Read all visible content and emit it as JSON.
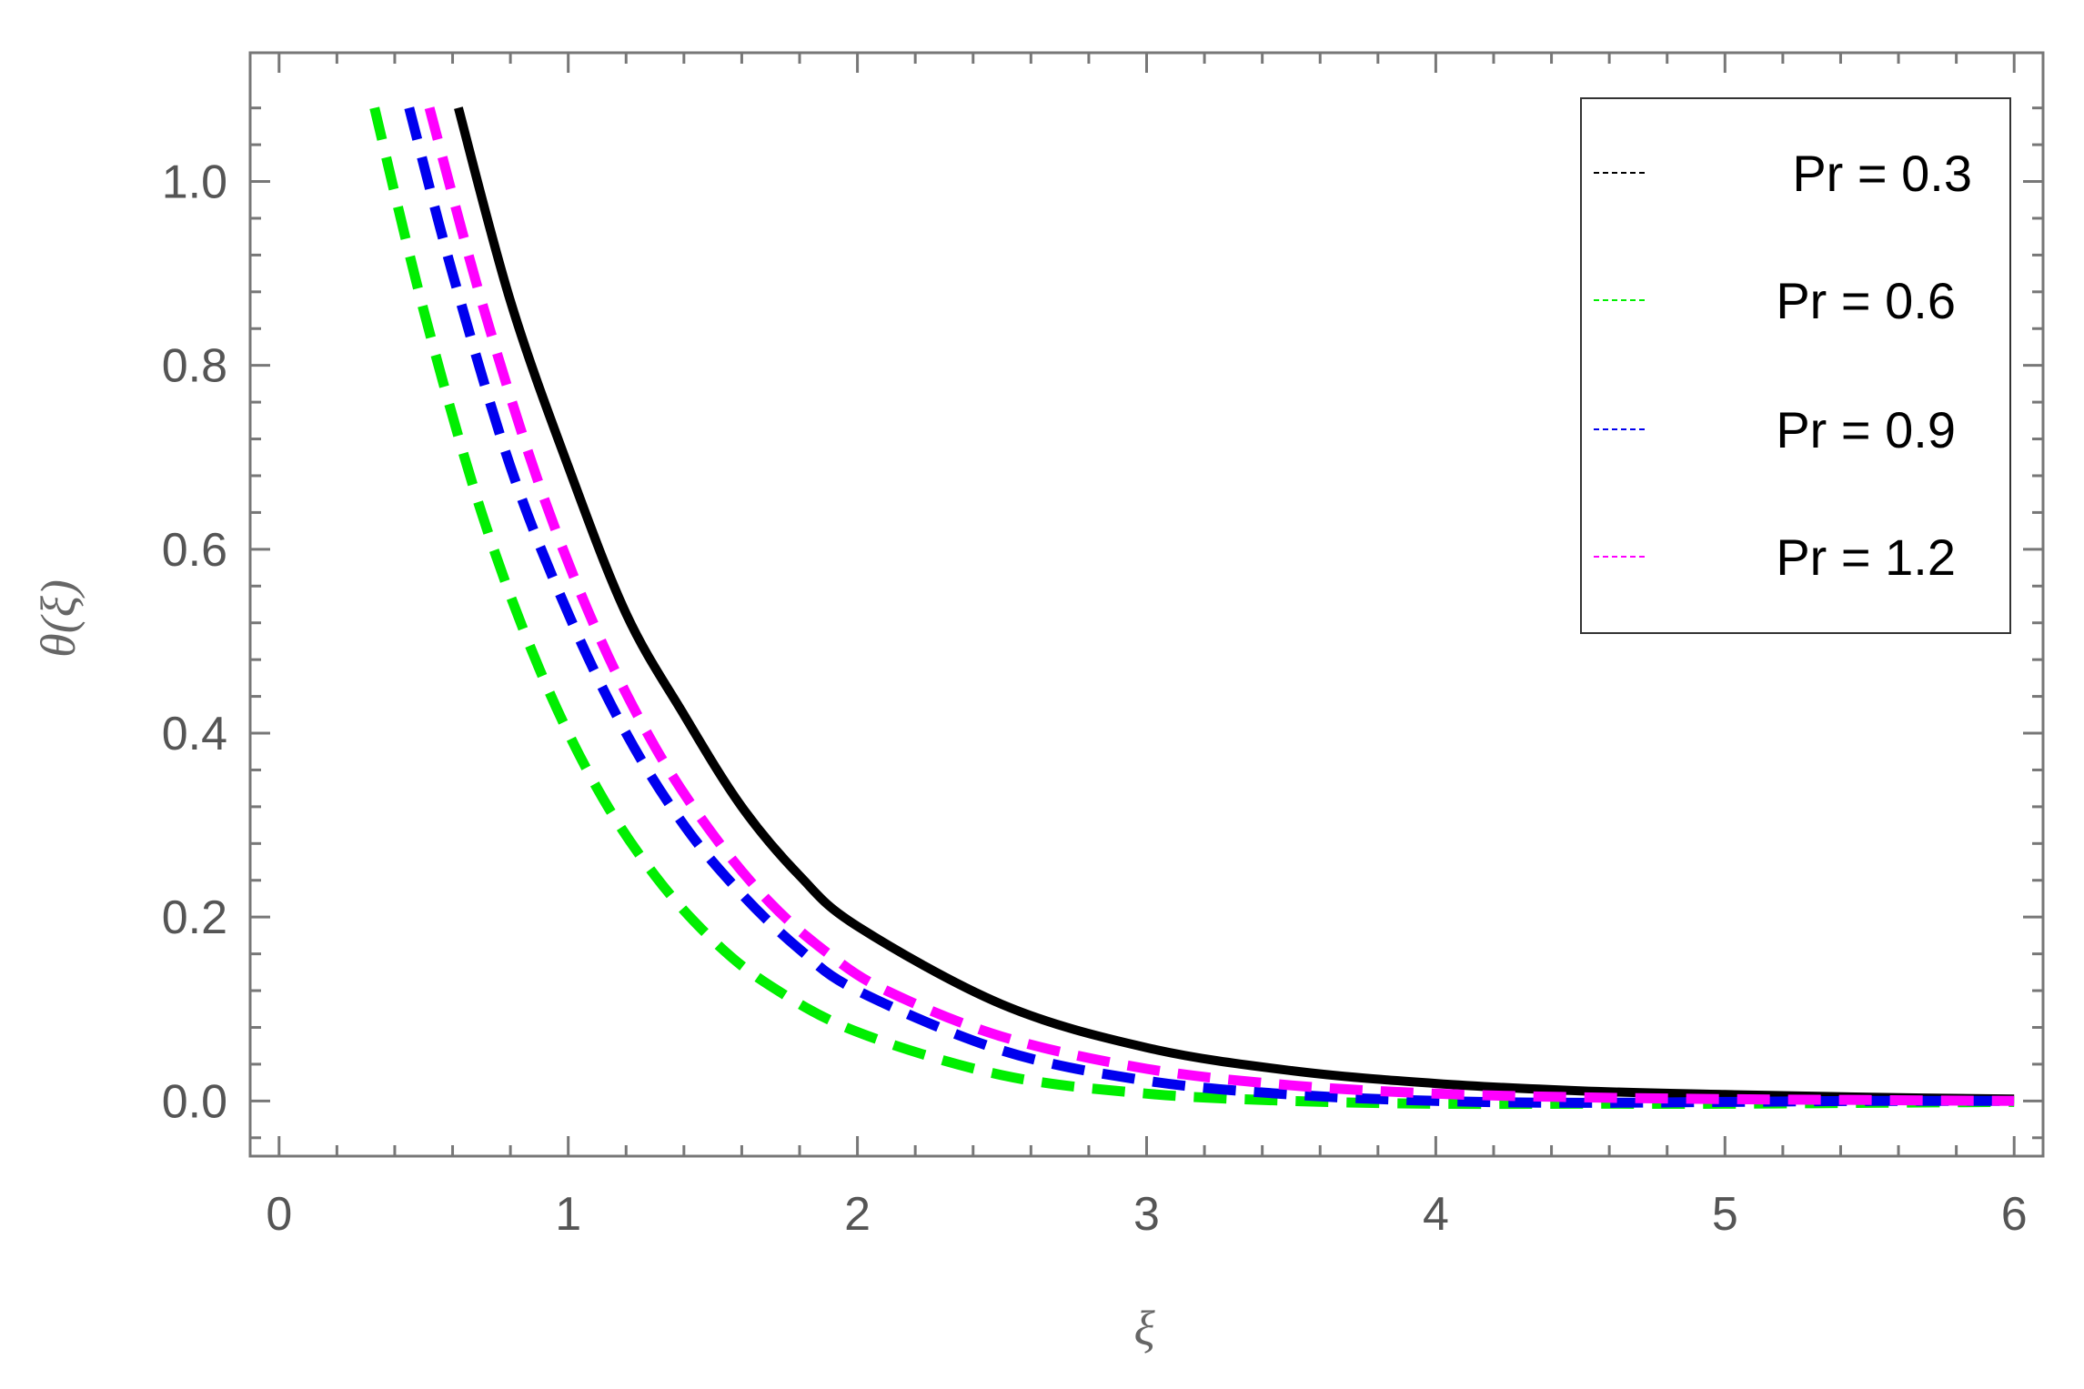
{
  "chart_data": {
    "type": "line",
    "title": "",
    "xlabel": "ξ",
    "ylabel": "θ(ξ)",
    "xlim": [
      -0.1,
      6.1
    ],
    "ylim": [
      -0.06,
      1.14
    ],
    "xticks": [
      0,
      1,
      2,
      3,
      4,
      5,
      6
    ],
    "xtick_labels": [
      "0",
      "1",
      "2",
      "3",
      "4",
      "5",
      "6"
    ],
    "yticks": [
      0.0,
      0.2,
      0.4,
      0.6,
      0.8,
      1.0
    ],
    "ytick_labels": [
      "0.0",
      "0.2",
      "0.4",
      "0.6",
      "0.8",
      "1.0"
    ],
    "grid": false,
    "legend_position": "top-right",
    "series": [
      {
        "name": "Pr  = 0.3",
        "color": "#000000",
        "style": "solid",
        "x": [
          0.62,
          0.8,
          1.0,
          1.2,
          1.4,
          1.6,
          1.8,
          2.0,
          2.5,
          3.0,
          3.5,
          4.0,
          4.5,
          5.0,
          5.5,
          6.0
        ],
        "y": [
          1.08,
          0.87,
          0.69,
          0.53,
          0.42,
          0.32,
          0.245,
          0.19,
          0.105,
          0.058,
          0.033,
          0.019,
          0.011,
          0.007,
          0.004,
          0.002
        ]
      },
      {
        "name": "Pr  = 0.6",
        "color": "#00ee00",
        "style": "dashed",
        "x": [
          0.33,
          0.5,
          0.7,
          0.9,
          1.1,
          1.3,
          1.5,
          1.7,
          2.0,
          2.5,
          3.0,
          3.5,
          4.0,
          4.5,
          5.0,
          5.5,
          6.0
        ],
        "y": [
          1.08,
          0.86,
          0.64,
          0.47,
          0.34,
          0.245,
          0.175,
          0.125,
          0.075,
          0.028,
          0.008,
          0.0,
          -0.003,
          -0.003,
          -0.003,
          -0.002,
          -0.001
        ]
      },
      {
        "name": "Pr = 0.9",
        "color": "#0000ee",
        "style": "dashed",
        "x": [
          0.45,
          0.6,
          0.8,
          1.0,
          1.2,
          1.4,
          1.6,
          1.8,
          2.0,
          2.5,
          3.0,
          3.5,
          4.0,
          4.5,
          5.0,
          5.5,
          6.0
        ],
        "y": [
          1.08,
          0.9,
          0.69,
          0.53,
          0.4,
          0.3,
          0.225,
          0.165,
          0.12,
          0.055,
          0.022,
          0.007,
          0.0,
          -0.002,
          -0.001,
          0.0,
          0.0
        ]
      },
      {
        "name": "Pr = 1.2",
        "color": "#ff00ff",
        "style": "dashed",
        "x": [
          0.52,
          0.7,
          0.9,
          1.1,
          1.3,
          1.5,
          1.7,
          1.9,
          2.1,
          2.5,
          3.0,
          3.5,
          4.0,
          4.5,
          5.0,
          5.5,
          6.0
        ],
        "y": [
          1.08,
          0.87,
          0.67,
          0.51,
          0.385,
          0.29,
          0.215,
          0.16,
          0.12,
          0.07,
          0.035,
          0.017,
          0.008,
          0.004,
          0.002,
          0.001,
          0.0
        ]
      }
    ]
  }
}
